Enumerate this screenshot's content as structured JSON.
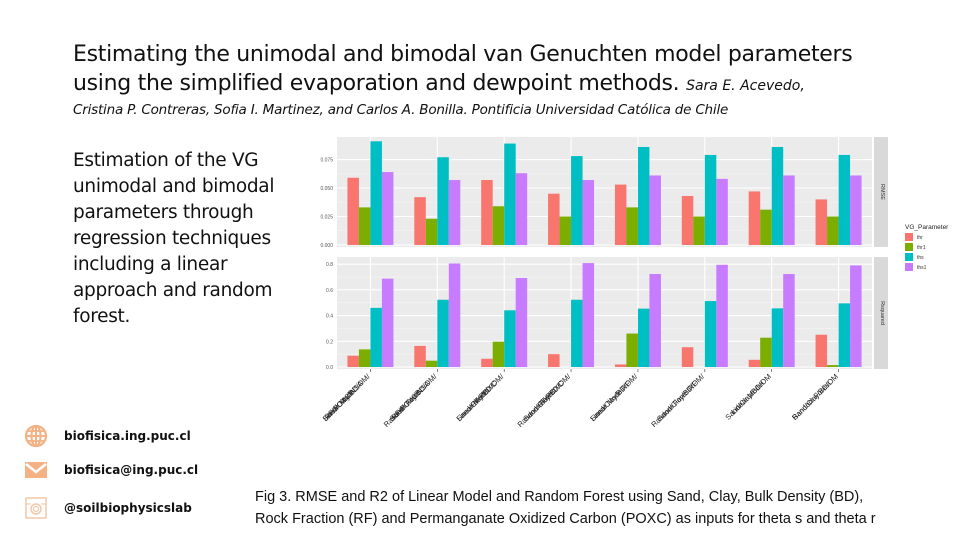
{
  "header": {
    "title_line1": "Estimating the unimodal and bimodal van Genuchten model parameters",
    "title_line2": "using the simplified evaporation and dewpoint methods.",
    "author_first": "Sara E. Acevedo,",
    "authors_rest": "Cristina P. Contreras, Sofia I. Martinez, and Carlos A. Bonilla. Pontificia Universidad Católica de Chile"
  },
  "description": "Estimation of the VG unimodal and bimodal parameters through regression techniques including a linear approach and random forest.",
  "contacts": [
    {
      "icon": "globe-icon",
      "label": "biofisica.ing.puc.cl"
    },
    {
      "icon": "mail-icon",
      "label": "biofisica@ing.puc.cl"
    },
    {
      "icon": "instagram-icon",
      "label": "@soilbiophysicslab"
    }
  ],
  "caption": {
    "line1": "Fig 3. RMSE and R2 of Linear Model and Random Forest using Sand, Clay, Bulk Density (BD),",
    "line2": "Rock Fraction (RF) and Permanganate Oxidized Carbon (POXC) as inputs for theta s and theta r"
  },
  "colors": {
    "thr": "#F8766D",
    "thr1": "#7CAE00",
    "ths": "#00BFC4",
    "ths1": "#C77CFF",
    "panel_bg": "#EBEBEB",
    "strip_bg": "#D9D9D9"
  },
  "chart_data": {
    "type": "bar",
    "title": "",
    "xlabel": "",
    "legend": {
      "title": "VG_Parameter",
      "position": "right",
      "entries": [
        "thr",
        "thr1",
        "ths",
        "ths1"
      ]
    },
    "categories": [
      "Sand/Clay/BD/OM/ RF/POXC/NSA Linear Model",
      "Sand/Clay/BD/OM/ RF/POXC/NSA Random Forest",
      "Sand/Clay/BD/OM/ RF/POXC Linear Model",
      "Sand/Clay/BD/OM/ RF/POXC Random Forest",
      "Sand/Clay/BD/OM/ RF Linear Model",
      "Sand/Clay/BD/OM/ RF Random Forest",
      "Sand/Clay/BD/OM Linear Model",
      "Sand/Clay/BD/OM Random Forest"
    ],
    "panels": [
      {
        "strip": "RMSE",
        "ylim": [
          0,
          0.093
        ],
        "yticks": [
          0.0,
          0.025,
          0.05,
          0.075
        ],
        "ytick_labels": [
          "0.000",
          "0.025",
          "0.050",
          "0.075"
        ],
        "series": [
          {
            "name": "thr",
            "values": [
              0.059,
              0.042,
              0.057,
              0.045,
              0.053,
              0.043,
              0.047,
              0.04
            ]
          },
          {
            "name": "thr1",
            "values": [
              0.033,
              0.023,
              0.034,
              0.025,
              0.033,
              0.025,
              0.031,
              0.025
            ]
          },
          {
            "name": "ths",
            "values": [
              0.091,
              0.077,
              0.089,
              0.078,
              0.086,
              0.079,
              0.086,
              0.079
            ]
          },
          {
            "name": "ths1",
            "values": [
              0.064,
              0.057,
              0.063,
              0.057,
              0.061,
              0.058,
              0.061,
              0.061
            ]
          }
        ]
      },
      {
        "strip": "Rsquared",
        "ylim": [
          0,
          0.84
        ],
        "yticks": [
          0.0,
          0.2,
          0.4,
          0.6,
          0.8
        ],
        "ytick_labels": [
          "0.0",
          "0.2",
          "0.4",
          "0.6",
          "0.8"
        ],
        "series": [
          {
            "name": "thr",
            "values": [
              0.088,
              0.164,
              0.064,
              0.1,
              0.02,
              0.154,
              0.056,
              0.251
            ]
          },
          {
            "name": "thr1",
            "values": [
              0.137,
              0.049,
              0.197,
              0.0,
              0.26,
              0.0,
              0.228,
              0.015
            ]
          },
          {
            "name": "ths",
            "values": [
              0.46,
              0.523,
              0.441,
              0.523,
              0.454,
              0.513,
              0.456,
              0.495
            ]
          },
          {
            "name": "ths1",
            "values": [
              0.687,
              0.805,
              0.692,
              0.808,
              0.723,
              0.795,
              0.723,
              0.79
            ]
          }
        ]
      }
    ]
  }
}
